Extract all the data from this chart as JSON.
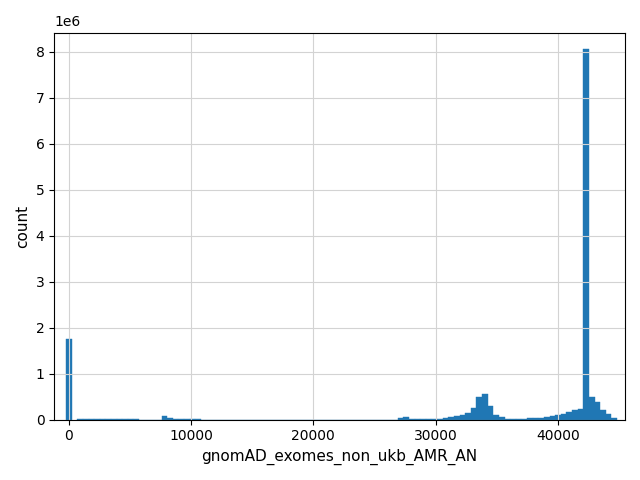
{
  "xlabel": "gnomAD_exomes_non_ukb_AMR_AN",
  "ylabel": "count",
  "bar_color": "#2077b4",
  "xlim": [
    -1200,
    45500
  ],
  "ylim": [
    0,
    8400000
  ],
  "yticks": [
    0,
    1000000,
    2000000,
    3000000,
    4000000,
    5000000,
    6000000,
    7000000,
    8000000
  ],
  "xticks": [
    0,
    10000,
    20000,
    30000,
    40000
  ],
  "bin_width": 460,
  "bins_centers": [
    0,
    920,
    1380,
    1840,
    2300,
    2760,
    3220,
    3680,
    4140,
    4600,
    5060,
    5520,
    5980,
    6440,
    6900,
    7360,
    7820,
    8280,
    8740,
    9200,
    9660,
    10120,
    10580,
    11040,
    11500,
    11960,
    12420,
    12880,
    13340,
    13800,
    14260,
    14720,
    15180,
    15640,
    16100,
    16560,
    17020,
    17480,
    17940,
    18400,
    18860,
    19320,
    19780,
    20240,
    20700,
    21160,
    21620,
    22080,
    22540,
    23000,
    23460,
    23920,
    24380,
    24840,
    25300,
    25760,
    26220,
    26680,
    27140,
    27600,
    28060,
    28520,
    28980,
    29440,
    29900,
    30360,
    30820,
    31280,
    31740,
    32200,
    32660,
    33120,
    33580,
    34040,
    34500,
    34960,
    35420,
    35880,
    36340,
    36800,
    37260,
    37720,
    38180,
    38640,
    39100,
    39560,
    40020,
    40480,
    40940,
    41400,
    41860,
    42320,
    42780,
    43240,
    43700,
    44160,
    44620
  ],
  "counts": [
    1750000,
    8000,
    5000,
    3000,
    2000,
    1500,
    1000,
    1000,
    800,
    600,
    500,
    500,
    400,
    400,
    300,
    300,
    70000,
    40000,
    8000,
    3000,
    1500,
    1000,
    500,
    400,
    300,
    300,
    300,
    300,
    300,
    300,
    300,
    300,
    300,
    300,
    300,
    300,
    300,
    300,
    300,
    300,
    300,
    300,
    300,
    300,
    300,
    300,
    300,
    300,
    300,
    300,
    300,
    300,
    300,
    300,
    300,
    300,
    300,
    300,
    30000,
    50000,
    20000,
    10000,
    5000,
    5000,
    10000,
    20000,
    40000,
    60000,
    80000,
    100000,
    150000,
    250000,
    500000,
    550000,
    300000,
    100000,
    50000,
    20000,
    15000,
    15000,
    20000,
    25000,
    30000,
    40000,
    60000,
    80000,
    100000,
    130000,
    160000,
    200000,
    230000,
    8050000,
    500000,
    380000,
    200000,
    120000,
    30000
  ]
}
